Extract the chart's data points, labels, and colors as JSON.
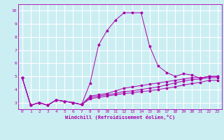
{
  "xlabel": "Windchill (Refroidissement éolien,°C)",
  "ylabel": "",
  "bg_color": "#cbeef3",
  "line_color": "#aa00aa",
  "grid_color": "#ffffff",
  "xlim": [
    -0.5,
    23.5
  ],
  "ylim": [
    2.5,
    10.5
  ],
  "xticks": [
    0,
    1,
    2,
    3,
    4,
    5,
    6,
    7,
    8,
    9,
    10,
    11,
    12,
    13,
    14,
    15,
    16,
    17,
    18,
    19,
    20,
    21,
    22,
    23
  ],
  "yticks": [
    3,
    4,
    5,
    6,
    7,
    8,
    9,
    10
  ],
  "x_vals": [
    0,
    1,
    2,
    3,
    4,
    5,
    6,
    7,
    8,
    9,
    10,
    11,
    12,
    13,
    14,
    15,
    16,
    17,
    18,
    19,
    20,
    21,
    22,
    23
  ],
  "series": [
    [
      4.9,
      2.8,
      3.0,
      2.8,
      3.2,
      3.1,
      3.0,
      2.85,
      4.5,
      7.4,
      8.5,
      9.3,
      9.85,
      9.85,
      9.85,
      7.3,
      5.8,
      5.3,
      5.0,
      5.2,
      5.1,
      4.85,
      5.0,
      5.0
    ],
    [
      4.9,
      2.8,
      3.0,
      2.8,
      3.2,
      3.1,
      3.0,
      2.85,
      3.5,
      3.6,
      3.7,
      3.9,
      4.1,
      4.2,
      4.3,
      4.4,
      4.5,
      4.6,
      4.7,
      4.8,
      4.9,
      4.9,
      5.0,
      5.0
    ],
    [
      4.9,
      2.8,
      3.0,
      2.8,
      3.2,
      3.1,
      3.0,
      2.85,
      3.4,
      3.5,
      3.6,
      3.7,
      3.85,
      3.9,
      4.0,
      4.1,
      4.2,
      4.35,
      4.5,
      4.65,
      4.75,
      4.8,
      4.9,
      4.9
    ],
    [
      4.9,
      2.8,
      3.0,
      2.8,
      3.2,
      3.1,
      3.0,
      2.85,
      3.3,
      3.4,
      3.5,
      3.6,
      3.7,
      3.75,
      3.85,
      3.9,
      4.0,
      4.1,
      4.2,
      4.35,
      4.45,
      4.55,
      4.7,
      4.7
    ]
  ],
  "tick_fontsize": 4.5,
  "xlabel_fontsize": 5.0
}
